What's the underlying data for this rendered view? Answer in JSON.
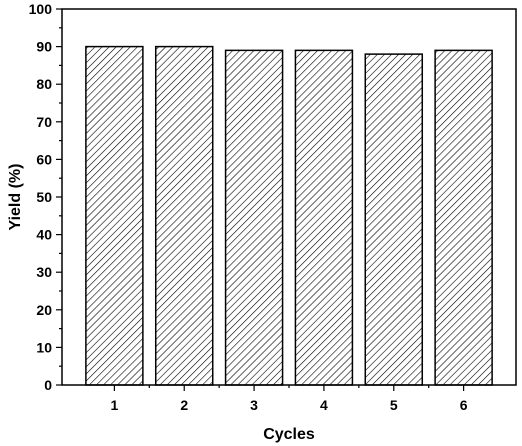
{
  "chart_data": {
    "type": "bar",
    "title": "",
    "xlabel": "Cycles",
    "ylabel": "Yield (%)",
    "categories": [
      "1",
      "2",
      "3",
      "4",
      "5",
      "6"
    ],
    "values": [
      90,
      90,
      89,
      89,
      88,
      89
    ],
    "ylim": [
      0,
      100
    ],
    "yticks": [
      0,
      10,
      20,
      30,
      40,
      50,
      60,
      70,
      80,
      90,
      100
    ],
    "grid": false,
    "legend": "none",
    "bar_fill": "diagonal-hatch",
    "colors": {
      "bar_stroke": "#000000",
      "hatch": "#000000",
      "background": "#ffffff"
    }
  }
}
